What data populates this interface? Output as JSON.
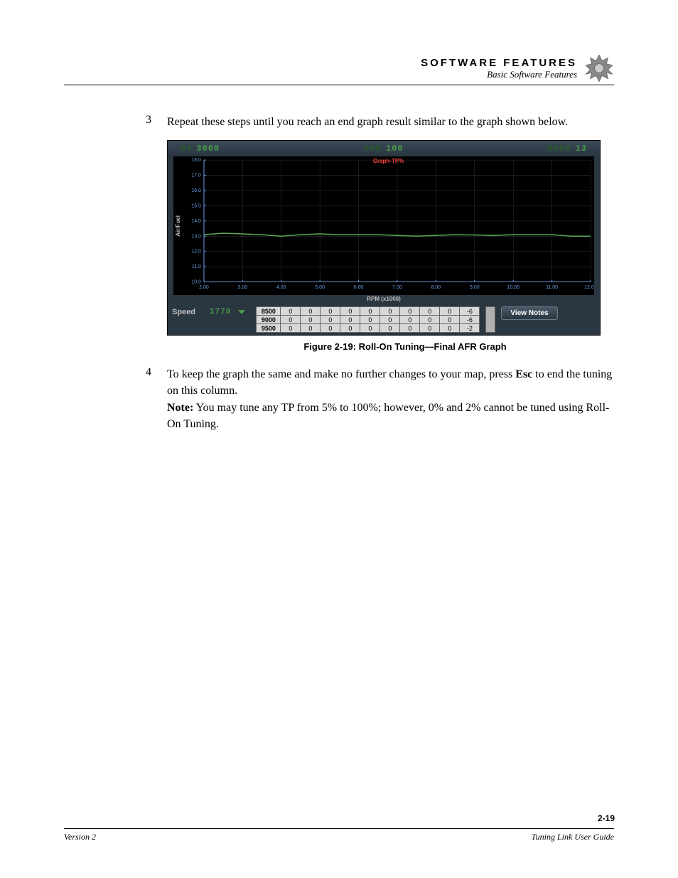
{
  "header": {
    "title": "SOFTWARE FEATURES",
    "subtitle": "Basic Software Features"
  },
  "steps": [
    {
      "num": "3",
      "text": "Repeat these steps until you reach an end graph result similar to the graph shown below."
    },
    {
      "num": "4",
      "text_parts": {
        "pre": "To keep the graph the same and make no further changes to your map, press ",
        "bold": "Esc",
        "post": " to end the tuning on this column."
      },
      "note_label": "Note:",
      "note_text": " You may tune any TP from 5% to 100%; however, 0% and 2% cannot be tuned using Roll-On Tuning."
    }
  ],
  "figure": {
    "caption": "Figure 2-19: Roll-On Tuning—Final AFR Graph",
    "topbar": {
      "lcd1": "3000",
      "lcd2": "100",
      "lcd3": "13"
    },
    "chart": {
      "overlay_title": "Graph-TP%",
      "y_label": "Air/Fuel",
      "x_label": "RPM (x1000)",
      "y_ticks": [
        "18.0",
        "17.0",
        "16.0",
        "15.0",
        "14.0",
        "13.0",
        "12.0",
        "11.0",
        "10.0"
      ],
      "x_ticks": [
        "2.00",
        "3.00",
        "4.00",
        "5.00",
        "6.00",
        "7.00",
        "8.00",
        "9.00",
        "10.00",
        "11.00",
        "12.00"
      ],
      "ylim": [
        10.0,
        18.0
      ],
      "xlim": [
        2.0,
        12.0
      ],
      "series": {
        "color": "#5aaa5a",
        "points": [
          [
            2.0,
            13.1
          ],
          [
            2.5,
            13.2
          ],
          [
            3.0,
            13.15
          ],
          [
            3.5,
            13.1
          ],
          [
            4.0,
            13.0
          ],
          [
            4.5,
            13.1
          ],
          [
            5.0,
            13.15
          ],
          [
            5.5,
            13.1
          ],
          [
            6.0,
            13.1
          ],
          [
            6.5,
            13.1
          ],
          [
            7.0,
            13.05
          ],
          [
            7.5,
            13.0
          ],
          [
            8.0,
            13.05
          ],
          [
            8.5,
            13.1
          ],
          [
            9.0,
            13.08
          ],
          [
            9.5,
            13.05
          ],
          [
            10.0,
            13.1
          ],
          [
            10.5,
            13.1
          ],
          [
            11.0,
            13.1
          ],
          [
            11.5,
            13.0
          ],
          [
            12.0,
            13.0
          ]
        ]
      },
      "grid_color": "#333333",
      "bg_color": "#000000"
    },
    "bottom": {
      "speed_label": "Speed",
      "speed_value": "1770",
      "view_notes": "View Notes",
      "table_rows": [
        [
          "8500",
          "0",
          "0",
          "0",
          "0",
          "0",
          "0",
          "0",
          "0",
          "0",
          "-6"
        ],
        [
          "9000",
          "0",
          "0",
          "0",
          "0",
          "0",
          "0",
          "0",
          "0",
          "0",
          "-6"
        ],
        [
          "9500",
          "0",
          "0",
          "0",
          "0",
          "0",
          "0",
          "0",
          "0",
          "0",
          "-2"
        ]
      ]
    }
  },
  "footer": {
    "left": "Version 2",
    "right": "Tuning Link User Guide",
    "page": "2-19"
  }
}
